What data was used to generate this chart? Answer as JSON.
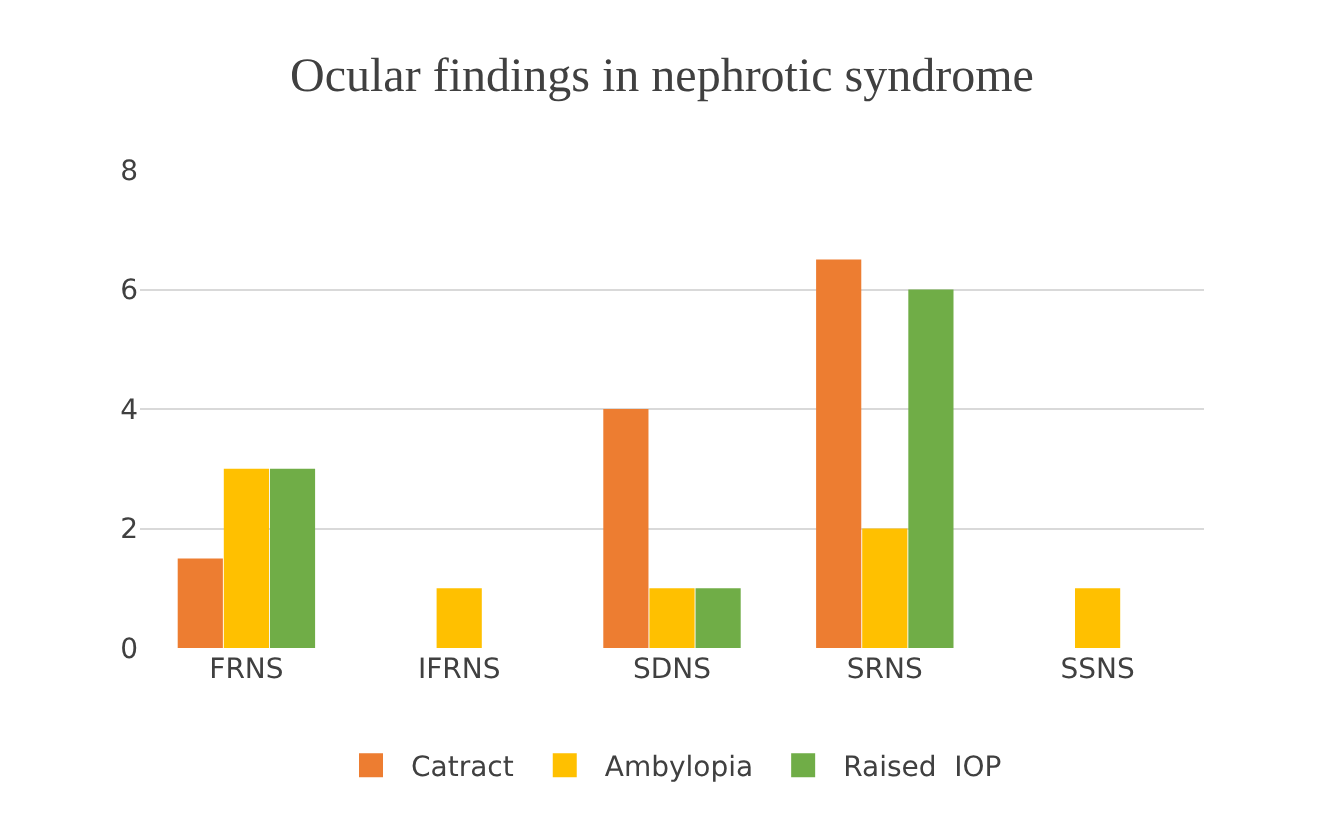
{
  "chart_data": {
    "type": "bar",
    "title": "Ocular findings in nephrotic syndrome",
    "categories": [
      "FRNS",
      "IFRNS",
      "SDNS",
      "SRNS",
      "SSNS"
    ],
    "series": [
      {
        "name": "Catract",
        "color": "#ed7d31",
        "values": [
          1.5,
          0,
          4,
          6.5,
          0
        ]
      },
      {
        "name": "Ambylopia",
        "color": "#ffc000",
        "values": [
          3,
          1,
          1,
          2,
          1
        ]
      },
      {
        "name": "Raised  IOP",
        "color": "#70ad47",
        "values": [
          3,
          0,
          1,
          6,
          0
        ]
      }
    ],
    "ylim": [
      0,
      8
    ],
    "yticks": [
      0,
      2,
      4,
      6,
      8
    ],
    "grid": "y",
    "legend": "bottom"
  }
}
